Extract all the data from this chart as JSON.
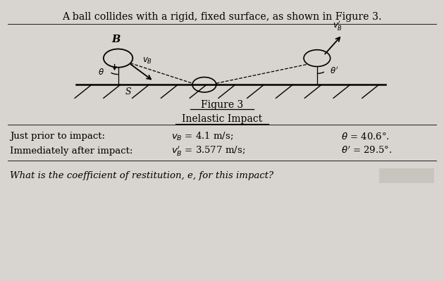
{
  "bg_color": "#d8d4d0",
  "title_text": "A ball collides with a rigid, fixed surface, as shown in Figure 3.",
  "figure_label": "Figure 3",
  "figure_sublabel": "Inelastic Impact",
  "line1_label": "Just prior to impact:",
  "line2_label": "Immediately after impact:",
  "question": "What is the coefficient of restitution, e, for this impact?",
  "answer_box_color": "#c8c4be",
  "text_color": "#000000",
  "surf_color": "#000000"
}
